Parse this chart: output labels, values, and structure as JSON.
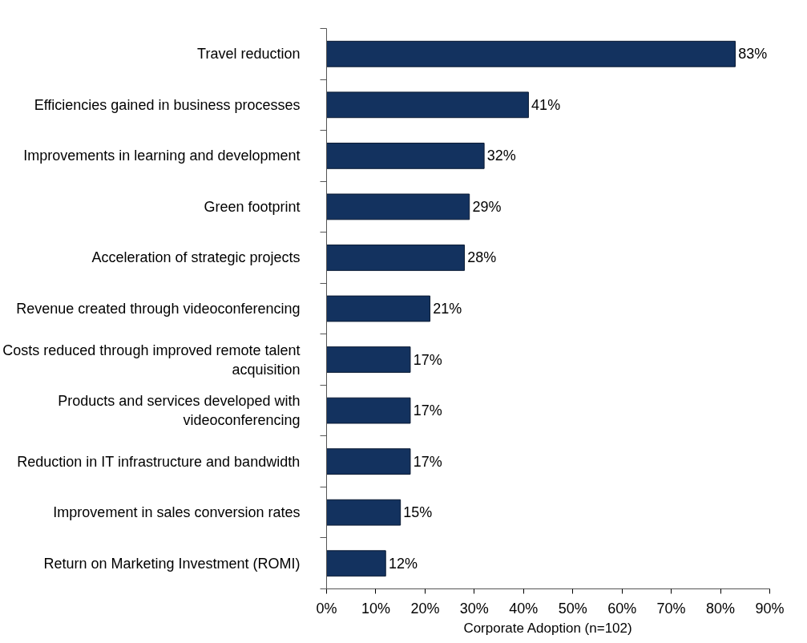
{
  "chart_data": {
    "type": "bar",
    "orientation": "horizontal",
    "xlabel": "Corporate Adoption (n=102)",
    "categories": [
      "Travel reduction",
      "Efficiencies gained in business processes",
      "Improvements in learning and development",
      "Green footprint",
      "Acceleration of strategic projects",
      "Revenue created through videoconferencing",
      "Costs reduced through improved remote talent acquisition",
      "Products and services developed with videoconferencing",
      "Reduction in IT infrastructure and bandwidth",
      "Improvement in sales conversion rates",
      "Return on Marketing Investment (ROMI)"
    ],
    "values": [
      83,
      41,
      32,
      29,
      28,
      21,
      17,
      17,
      17,
      15,
      12
    ],
    "value_labels": [
      "83%",
      "41%",
      "32%",
      "29%",
      "28%",
      "21%",
      "17%",
      "17%",
      "17%",
      "15%",
      "12%"
    ],
    "color": "#13325f",
    "xlim": [
      0,
      90
    ],
    "xticks": [
      {
        "value": 0,
        "label": "0%"
      },
      {
        "value": 10,
        "label": "10%"
      },
      {
        "value": 20,
        "label": "20%"
      },
      {
        "value": 30,
        "label": "30%"
      },
      {
        "value": 40,
        "label": "40%"
      },
      {
        "value": 50,
        "label": "50%"
      },
      {
        "value": 60,
        "label": "60%"
      },
      {
        "value": 70,
        "label": "70%"
      },
      {
        "value": 80,
        "label": "80%"
      },
      {
        "value": 90,
        "label": "90%"
      }
    ],
    "grid": false
  }
}
